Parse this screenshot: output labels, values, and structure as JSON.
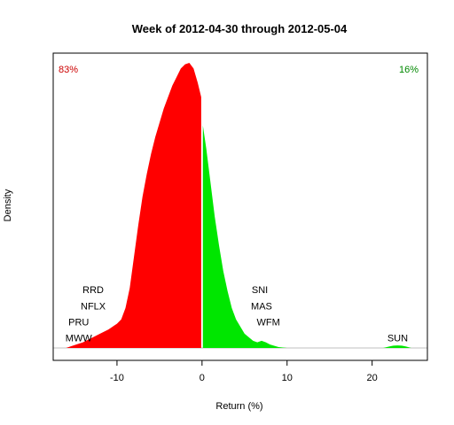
{
  "chart_data": {
    "type": "area",
    "title": "Week of 2012-04-30 through 2012-05-04",
    "xlabel": "Return (%)",
    "ylabel": "Density",
    "xlim": [
      -17.5,
      26.5
    ],
    "ylim": [
      0,
      1.0
    ],
    "x_ticks": [
      -10,
      0,
      10,
      20
    ],
    "grid": false,
    "colors": {
      "negative": "#ff0000",
      "positive": "#00e600",
      "neg_label": "#cc0000",
      "pos_label": "#008800",
      "axis": "#000000",
      "baseline": "#bfbfbf"
    },
    "negative_share": "83%",
    "positive_share": "16%",
    "series": [
      {
        "fill": "negative",
        "x": [
          -16,
          -15,
          -14,
          -13,
          -12,
          -11,
          -10,
          -9.5,
          -9,
          -8.5,
          -8,
          -7.5,
          -7,
          -6.5,
          -6,
          -5.5,
          -5,
          -4.5,
          -4,
          -3.5,
          -3,
          -2.5,
          -2,
          -1.5,
          -1,
          -0.5,
          -0.1
        ],
        "y": [
          0.0,
          0.01,
          0.02,
          0.035,
          0.05,
          0.065,
          0.085,
          0.1,
          0.14,
          0.21,
          0.32,
          0.43,
          0.53,
          0.61,
          0.68,
          0.74,
          0.79,
          0.84,
          0.88,
          0.92,
          0.95,
          0.98,
          0.995,
          1.0,
          0.98,
          0.93,
          0.88
        ]
      },
      {
        "fill": "positive",
        "x": [
          0.1,
          0.5,
          1,
          1.5,
          2,
          2.5,
          3,
          3.5,
          4,
          5,
          6,
          6.5,
          7,
          7.5,
          8,
          9,
          10
        ],
        "y": [
          0.78,
          0.7,
          0.58,
          0.46,
          0.36,
          0.27,
          0.2,
          0.14,
          0.1,
          0.05,
          0.025,
          0.02,
          0.025,
          0.02,
          0.012,
          0.003,
          0.0
        ]
      },
      {
        "fill": "positive",
        "x": [
          21.3,
          22,
          22.5,
          23,
          23.5,
          24,
          24.6
        ],
        "y": [
          0.0,
          0.005,
          0.008,
          0.009,
          0.008,
          0.005,
          0.0
        ]
      }
    ],
    "annotations": [
      {
        "text": "RRD",
        "x": -12.8,
        "y": 0.205
      },
      {
        "text": "NFLX",
        "x": -12.8,
        "y": 0.148
      },
      {
        "text": "PRU",
        "x": -14.5,
        "y": 0.092
      },
      {
        "text": "MWW",
        "x": -14.5,
        "y": 0.035
      },
      {
        "text": "SNI",
        "x": 6.8,
        "y": 0.205
      },
      {
        "text": "MAS",
        "x": 7.0,
        "y": 0.148
      },
      {
        "text": "WFM",
        "x": 7.8,
        "y": 0.092
      },
      {
        "text": "SUN",
        "x": 23.0,
        "y": 0.035
      }
    ]
  }
}
